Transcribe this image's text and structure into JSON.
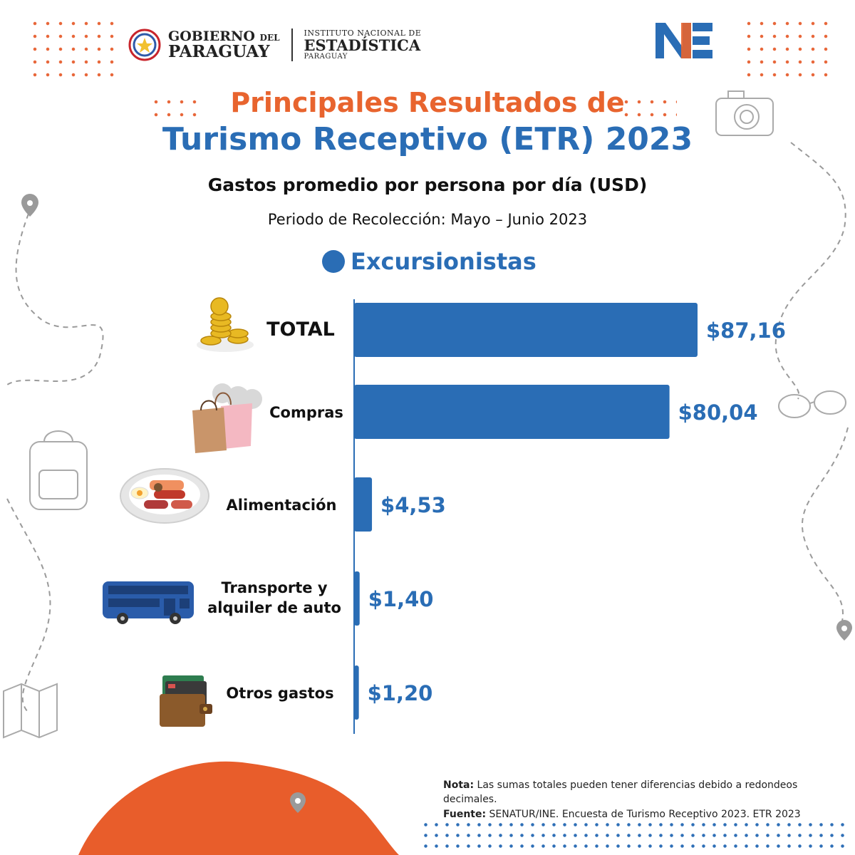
{
  "header": {
    "gobierno_line1": "GOBIERNO",
    "gobierno_del": "DEL",
    "gobierno_line2": "PARAGUAY",
    "ine_line1": "INSTITUTO NACIONAL DE",
    "ine_line2": "ESTADÍSTICA",
    "ine_line3": "PARAGUAY",
    "ine_mark": "NE"
  },
  "title_line1": "Principales Resultados de",
  "title_line2": "Turismo Receptivo (ETR) 2023",
  "subtitle": "Gastos promedio por persona por día (USD)",
  "period": "Periodo de Recolección: Mayo – Junio 2023",
  "series_legend": "Excursionistas",
  "colors": {
    "accent_orange": "#e8642e",
    "brand_blue": "#2a6db5",
    "bar_blue": "#2a6db5"
  },
  "chart_data": {
    "type": "bar",
    "orientation": "horizontal",
    "categories": [
      "TOTAL",
      "Compras",
      "Alimentación",
      "Transporte y alquiler de auto",
      "Otros gastos"
    ],
    "series": [
      {
        "name": "Excursionistas",
        "values": [
          87.16,
          80.04,
          4.53,
          1.4,
          1.2
        ]
      }
    ],
    "value_labels": [
      "$87,16",
      "$80,04",
      "$4,53",
      "$1,40",
      "$1,20"
    ],
    "xlim": [
      0,
      100
    ],
    "grid": false
  },
  "icons": [
    "coins-icon",
    "shopping-bags-icon",
    "food-plate-icon",
    "bus-icon",
    "wallet-icon"
  ],
  "footer": {
    "note_label": "Nota:",
    "note_text": "Las sumas totales pueden tener diferencias debido a redondeos decimales.",
    "source_label": "Fuente:",
    "source_text": "SENATUR/INE. Encuesta de Turismo Receptivo 2023. ETR 2023"
  }
}
